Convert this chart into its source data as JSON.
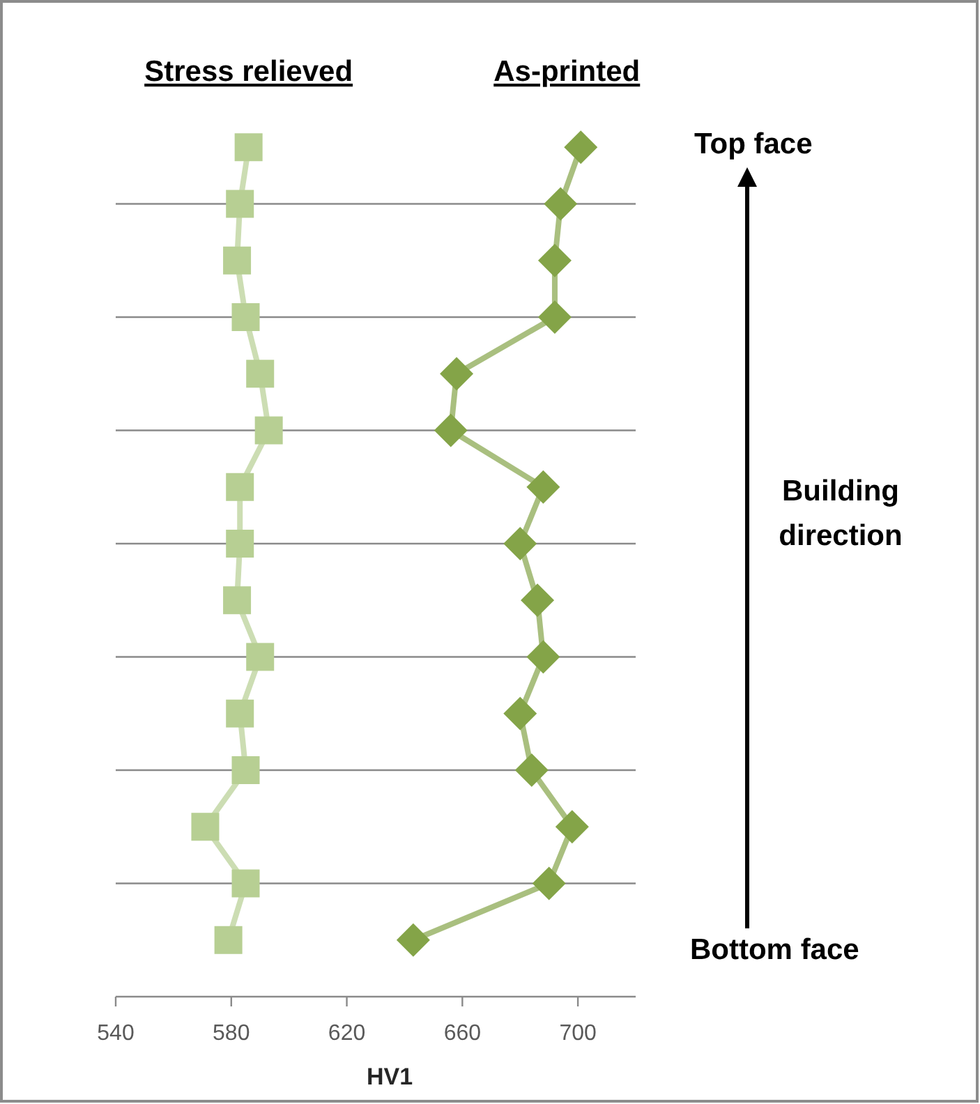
{
  "chart_data": {
    "type": "line",
    "orientation": "horizontal",
    "xlabel": "HV1",
    "xlim": [
      540,
      720
    ],
    "xticks": [
      540,
      580,
      620,
      660,
      700
    ],
    "grid": "y",
    "categories": [
      null,
      null,
      null,
      null,
      null,
      null,
      null,
      null,
      null,
      null,
      null,
      null,
      null,
      null,
      null
    ],
    "series": [
      {
        "name": "Stress relieved",
        "color": "#b7cf93",
        "marker": "square",
        "values": [
          586,
          583,
          582,
          585,
          590,
          593,
          583,
          583,
          582,
          590,
          583,
          585,
          571,
          585,
          579
        ]
      },
      {
        "name": "As-printed",
        "color": "#84a448",
        "marker": "diamond",
        "values": [
          701,
          694,
          692,
          692,
          658,
          656,
          688,
          680,
          686,
          688,
          680,
          684,
          698,
          690,
          643
        ]
      }
    ],
    "annotations": [
      "Top face",
      "Building direction",
      "Bottom face"
    ]
  }
}
